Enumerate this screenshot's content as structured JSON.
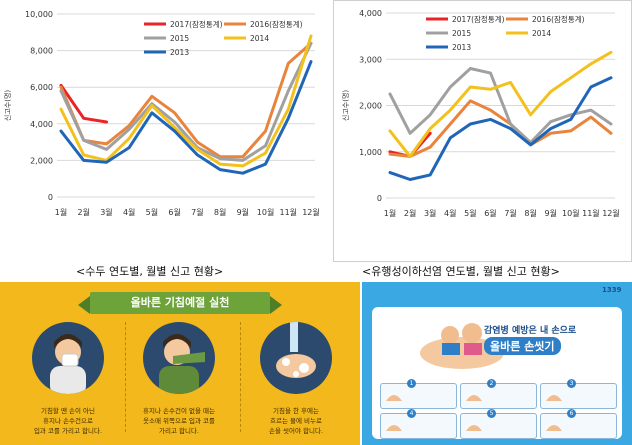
{
  "chart_data": [
    {
      "type": "line",
      "ylabel": "신고수(명)",
      "ylim": [
        0,
        10000
      ],
      "yticks": [
        "0",
        "2,000",
        "4,000",
        "6,000",
        "8,000",
        "10,000"
      ],
      "categories": [
        "1월",
        "2월",
        "3월",
        "4월",
        "5월",
        "6월",
        "7월",
        "8월",
        "9월",
        "10월",
        "11월",
        "12월"
      ],
      "grid": true,
      "legend_position": "top-right",
      "series": [
        {
          "name": "2017(잠정통계)",
          "color": "#e8232a",
          "values": [
            6100,
            4300,
            4100,
            null,
            null,
            null,
            null,
            null,
            null,
            null,
            null,
            null
          ]
        },
        {
          "name": "2016(잠정통계)",
          "color": "#e9843c",
          "values": [
            6000,
            3100,
            2900,
            3900,
            5500,
            4600,
            3000,
            2200,
            2200,
            3600,
            7300,
            8400
          ]
        },
        {
          "name": "2015",
          "color": "#a0a0a0",
          "values": [
            5800,
            3100,
            2600,
            3700,
            5100,
            4100,
            2700,
            2100,
            2000,
            2800,
            5800,
            8400
          ]
        },
        {
          "name": "2014",
          "color": "#f3c11d",
          "values": [
            4800,
            2300,
            2000,
            3200,
            5000,
            3800,
            2600,
            1800,
            1700,
            2400,
            4800,
            8800
          ]
        },
        {
          "name": "2013",
          "color": "#2066b8",
          "values": [
            3600,
            2000,
            1900,
            2700,
            4600,
            3600,
            2300,
            1500,
            1300,
            1800,
            4300,
            7400
          ]
        }
      ]
    },
    {
      "type": "line",
      "ylabel": "신고수(명)",
      "ylim": [
        0,
        4000
      ],
      "yticks": [
        "0",
        "1,000",
        "2,000",
        "3,000",
        "4,000"
      ],
      "categories": [
        "1월",
        "2월",
        "3월",
        "4월",
        "5월",
        "6월",
        "7월",
        "8월",
        "9월",
        "10월",
        "11월",
        "12월"
      ],
      "grid": true,
      "legend_position": "top-right",
      "series": [
        {
          "name": "2017(잠정통계)",
          "color": "#e8232a",
          "values": [
            1000,
            900,
            1400,
            null,
            null,
            null,
            null,
            null,
            null,
            null,
            null,
            null
          ]
        },
        {
          "name": "2016(잠정통계)",
          "color": "#e9843c",
          "values": [
            950,
            900,
            1100,
            1600,
            2100,
            1900,
            1600,
            1150,
            1400,
            1450,
            1750,
            1400
          ]
        },
        {
          "name": "2015",
          "color": "#a0a0a0",
          "values": [
            2250,
            1400,
            1800,
            2400,
            2800,
            2700,
            1600,
            1200,
            1650,
            1800,
            1900,
            1600
          ]
        },
        {
          "name": "2014",
          "color": "#f3c11d",
          "values": [
            1450,
            900,
            1500,
            1900,
            2400,
            2350,
            2500,
            1800,
            2300,
            2600,
            2900,
            3150
          ]
        },
        {
          "name": "2013",
          "color": "#2066b8",
          "values": [
            550,
            400,
            500,
            1300,
            1600,
            1700,
            1500,
            1150,
            1500,
            1700,
            2400,
            2600
          ]
        }
      ]
    }
  ],
  "captions": {
    "left": "<수두 연도별, 월별 신고 현황>",
    "right": "<유행성이하선염 연도별, 월별 신고 현황>"
  },
  "poster_left": {
    "title": "올바른 기침예절 실천",
    "steps": [
      "기침할 땐 손이 아닌\n휴지나 손수건으로\n입과 코를 가리고 합니다.",
      "휴지나 손수건이 없을 때는\n옷소매 위쪽으로 입과 코를\n가리고 합니다.",
      "기침을 한 후에는\n흐르는 물에 비누로\n손을 씻어야 합니다."
    ]
  },
  "poster_right": {
    "title_top": "감염병 예방은 내 손으로",
    "title_main": "올바른 손씻기",
    "logo": "1339",
    "step_numbers": [
      "1",
      "2",
      "3",
      "4",
      "5",
      "6"
    ]
  }
}
